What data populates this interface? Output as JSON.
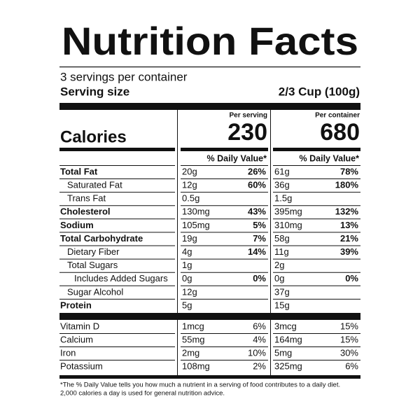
{
  "header": {
    "title": "Nutrition Facts",
    "servings": "3 servings per container",
    "serving_size_label": "Serving size",
    "serving_size": "2/3 Cup (100g)"
  },
  "calories_label": "Calories",
  "columns": [
    {
      "heading": "Per serving",
      "calories": "230",
      "dv_heading": "% Daily Value*"
    },
    {
      "heading": "Per container",
      "calories": "680",
      "dv_heading": "% Daily Value*"
    }
  ],
  "nutrients": [
    {
      "name": "Total Fat",
      "bold": true,
      "indent": 0,
      "values": [
        {
          "amount": "20g",
          "dv": "26%"
        },
        {
          "amount": "61g",
          "dv": "78%"
        }
      ]
    },
    {
      "name": "Saturated Fat",
      "bold": false,
      "indent": 1,
      "values": [
        {
          "amount": "12g",
          "dv": "60%"
        },
        {
          "amount": "36g",
          "dv": "180%"
        }
      ]
    },
    {
      "name": "Trans Fat",
      "bold": false,
      "indent": 1,
      "values": [
        {
          "amount": "0.5g"
        },
        {
          "amount": "1.5g"
        }
      ]
    },
    {
      "name": "Cholesterol",
      "bold": true,
      "indent": 0,
      "values": [
        {
          "amount": "130mg",
          "dv": "43%"
        },
        {
          "amount": "395mg",
          "dv": "132%"
        }
      ]
    },
    {
      "name": "Sodium",
      "bold": true,
      "indent": 0,
      "values": [
        {
          "amount": "105mg",
          "dv": "5%"
        },
        {
          "amount": "310mg",
          "dv": "13%"
        }
      ]
    },
    {
      "name": "Total Carbohydrate",
      "bold": true,
      "indent": 0,
      "values": [
        {
          "amount": "19g",
          "dv": "7%"
        },
        {
          "amount": "58g",
          "dv": "21%"
        }
      ]
    },
    {
      "name": "Dietary Fiber",
      "bold": false,
      "indent": 1,
      "values": [
        {
          "amount": "4g",
          "dv": "14%"
        },
        {
          "amount": "11g",
          "dv": "39%"
        }
      ]
    },
    {
      "name": "Total Sugars",
      "bold": false,
      "indent": 1,
      "values": [
        {
          "amount": "1g"
        },
        {
          "amount": "2g"
        }
      ]
    },
    {
      "name": "Includes Added Sugars",
      "bold": false,
      "indent": 2,
      "values": [
        {
          "amount": "0g",
          "dv": "0%"
        },
        {
          "amount": "0g",
          "dv": "0%"
        }
      ]
    },
    {
      "name": "Sugar Alcohol",
      "bold": false,
      "indent": 1,
      "values": [
        {
          "amount": "12g"
        },
        {
          "amount": "37g"
        }
      ]
    },
    {
      "name": "Protein",
      "bold": true,
      "indent": 0,
      "values": [
        {
          "amount": "5g"
        },
        {
          "amount": "15g"
        }
      ]
    }
  ],
  "vitamins": [
    {
      "name": "Vitamin D",
      "values": [
        {
          "amount": "1mcg",
          "dv": "6%"
        },
        {
          "amount": "3mcg",
          "dv": "15%"
        }
      ]
    },
    {
      "name": "Calcium",
      "values": [
        {
          "amount": "55mg",
          "dv": "4%"
        },
        {
          "amount": "164mg",
          "dv": "15%"
        }
      ]
    },
    {
      "name": "Iron",
      "values": [
        {
          "amount": "2mg",
          "dv": "10%"
        },
        {
          "amount": "5mg",
          "dv": "30%"
        }
      ]
    },
    {
      "name": "Potassium",
      "values": [
        {
          "amount": "108mg",
          "dv": "2%"
        },
        {
          "amount": "325mg",
          "dv": "6%"
        }
      ]
    }
  ],
  "footnote": [
    "*The % Daily Value tells you how much a nutrient in a serving of food contributes to a daily diet.",
    "2,000 calories a day is used for general nutrition advice."
  ]
}
